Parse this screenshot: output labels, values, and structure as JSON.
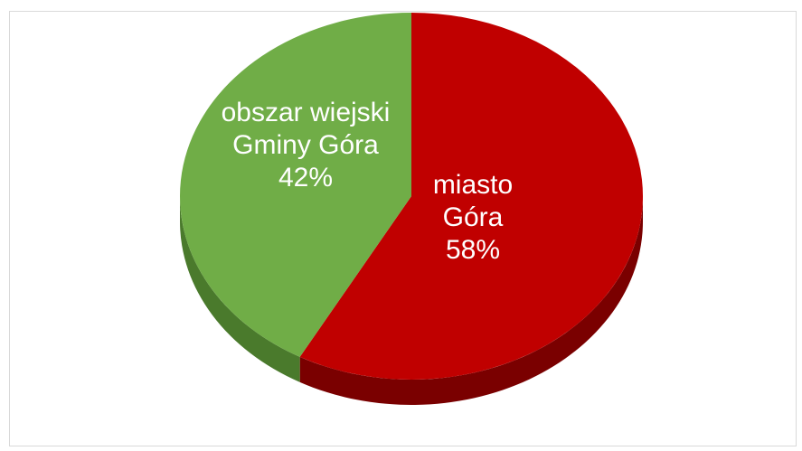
{
  "chart_data": {
    "type": "pie",
    "style": "3d",
    "categories": [
      "miasto Góra",
      "obszar wiejski Gminy Góra"
    ],
    "values": [
      58,
      42
    ],
    "unit": "%",
    "labels": [
      {
        "lines": [
          "miasto",
          "Góra"
        ],
        "percent": "58%"
      },
      {
        "lines": [
          "obszar wiejski",
          "Gminy Góra"
        ],
        "percent": "42%"
      }
    ],
    "colors": [
      "#c00000",
      "#70ad47"
    ],
    "side_colors": [
      "#7a0000",
      "#4a7a2c"
    ],
    "title": "",
    "legend": "none"
  }
}
